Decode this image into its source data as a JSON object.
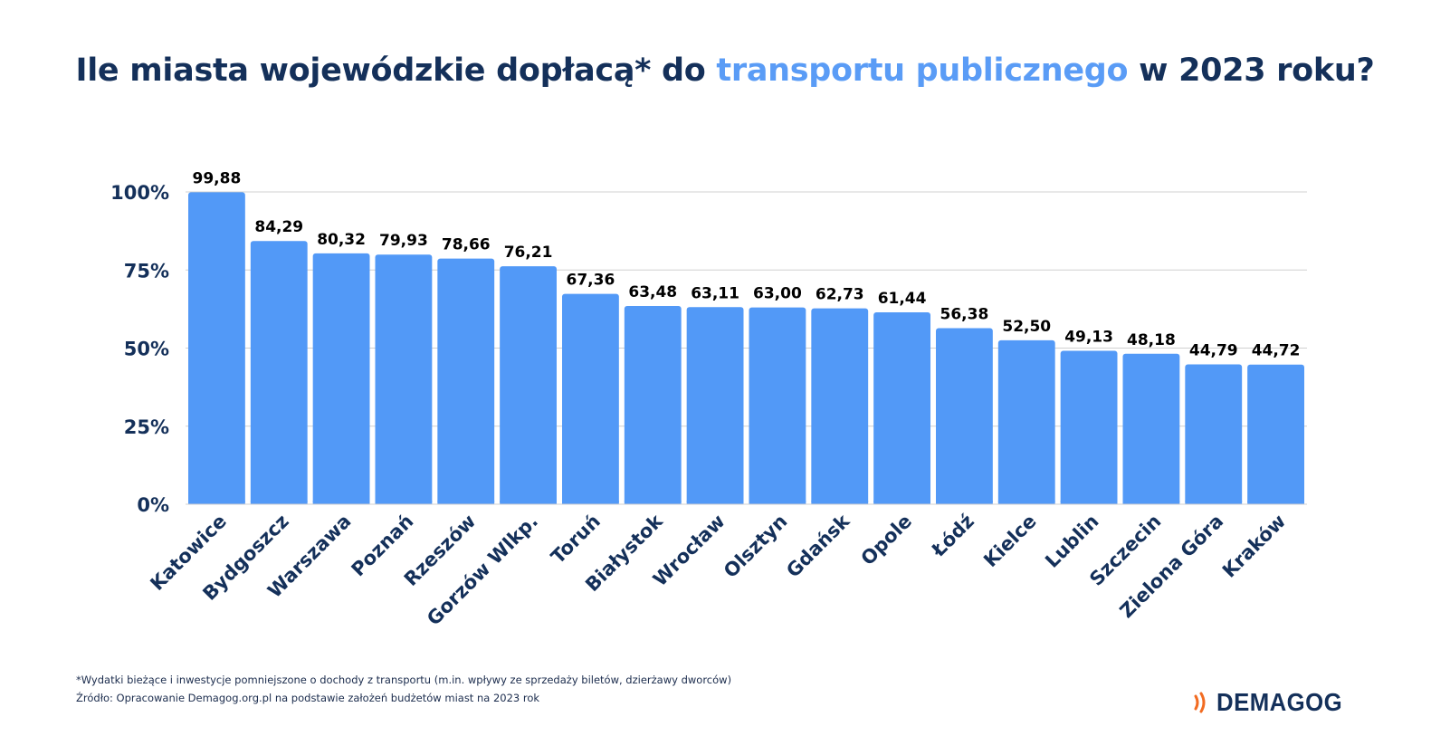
{
  "title": {
    "part1": "Ile miasta wojewódzkie dopłacą* do ",
    "accent": "transportu publicznego",
    "part2": " w 2023 roku?"
  },
  "footnote": "*Wydatki bieżące i inwestycje pomniejszone o dochody z transportu (m.in. wpływy ze sprzedaży biletów, dzierżawy dworców)",
  "source": "Źródło: Opracowanie Demagog.org.pl na podstawie założeń budżetów miast na 2023 rok",
  "logo": {
    "text": "DEMAGOG",
    "icon": "sound-waves-icon",
    "icon_color": "#f26b21"
  },
  "colors": {
    "bar": "#5299f7",
    "title": "#14305a",
    "accent": "#5a9cf6",
    "label": "#000000"
  },
  "chart_data": {
    "type": "bar",
    "categories": [
      "Katowice",
      "Bydgoszcz",
      "Warszawa",
      "Poznań",
      "Rzeszów",
      "Gorzów Wlkp.",
      "Toruń",
      "Białystok",
      "Wrocław",
      "Olsztyn",
      "Gdańsk",
      "Opole",
      "Łódź",
      "Kielce",
      "Lublin",
      "Szczecin",
      "Zielona Góra",
      "Kraków"
    ],
    "values": [
      99.88,
      84.29,
      80.32,
      79.93,
      78.66,
      76.21,
      67.36,
      63.48,
      63.11,
      63.0,
      62.73,
      61.44,
      56.38,
      52.5,
      49.13,
      48.18,
      44.79,
      44.72
    ],
    "value_labels": [
      "99,88",
      "84,29",
      "80,32",
      "79,93",
      "78,66",
      "76,21",
      "67,36",
      "63,48",
      "63,11",
      "63,00",
      "62,73",
      "61,44",
      "56,38",
      "52,50",
      "49,13",
      "48,18",
      "44,79",
      "44,72"
    ],
    "y_ticks": [
      0,
      25,
      50,
      75,
      100
    ],
    "y_tick_labels": [
      "0%",
      "25%",
      "50%",
      "75%",
      "100%"
    ],
    "ylim": [
      0,
      100
    ],
    "grid": true,
    "legend": "none"
  }
}
